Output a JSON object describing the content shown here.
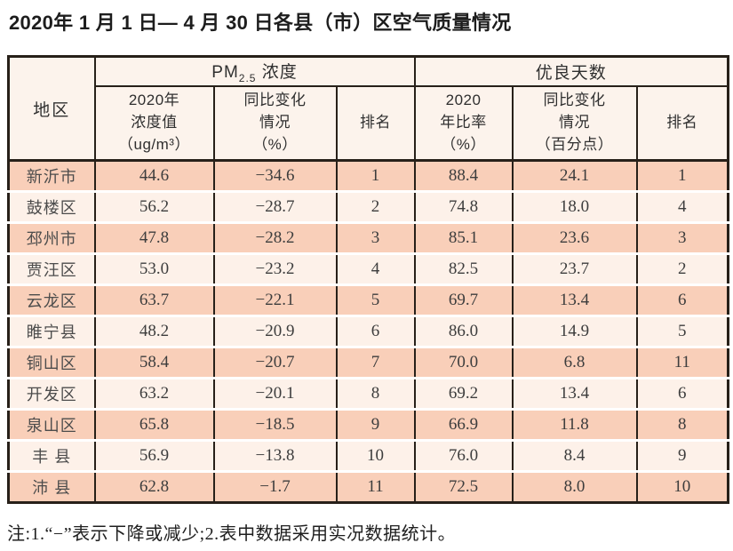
{
  "title": "2020年 1 月 1 日— 4 月 30 日各县（市）区空气质量情况",
  "table": {
    "header": {
      "region": "地区",
      "pm_group": {
        "prefix": "PM",
        "sub": "2.5",
        "suffix": " 浓度"
      },
      "good_group": "优良天数",
      "sub_headers": {
        "conc": "2020年\n浓度值\n（ug/m³）",
        "pm_change": "同比变化\n情况\n（%）",
        "pm_rank": "排名",
        "ratio": "2020\n年比率\n（%）",
        "good_change": "同比变化\n情况\n（百分点）",
        "good_rank": "排名"
      }
    },
    "rows": [
      {
        "region": "新沂市",
        "pm_value": "44.6",
        "pm_change": "−34.6",
        "pm_rank": "1",
        "good_ratio": "88.4",
        "good_change": "24.1",
        "good_rank": "1"
      },
      {
        "region": "鼓楼区",
        "pm_value": "56.2",
        "pm_change": "−28.7",
        "pm_rank": "2",
        "good_ratio": "74.8",
        "good_change": "18.0",
        "good_rank": "4"
      },
      {
        "region": "邳州市",
        "pm_value": "47.8",
        "pm_change": "−28.2",
        "pm_rank": "3",
        "good_ratio": "85.1",
        "good_change": "23.6",
        "good_rank": "3"
      },
      {
        "region": "贾汪区",
        "pm_value": "53.0",
        "pm_change": "−23.2",
        "pm_rank": "4",
        "good_ratio": "82.5",
        "good_change": "23.7",
        "good_rank": "2"
      },
      {
        "region": "云龙区",
        "pm_value": "63.7",
        "pm_change": "−22.1",
        "pm_rank": "5",
        "good_ratio": "69.7",
        "good_change": "13.4",
        "good_rank": "6"
      },
      {
        "region": "睢宁县",
        "pm_value": "48.2",
        "pm_change": "−20.9",
        "pm_rank": "6",
        "good_ratio": "86.0",
        "good_change": "14.9",
        "good_rank": "5"
      },
      {
        "region": "铜山区",
        "pm_value": "58.4",
        "pm_change": "−20.7",
        "pm_rank": "7",
        "good_ratio": "70.0",
        "good_change": "6.8",
        "good_rank": "11"
      },
      {
        "region": "开发区",
        "pm_value": "63.2",
        "pm_change": "−20.1",
        "pm_rank": "8",
        "good_ratio": "69.2",
        "good_change": "13.4",
        "good_rank": "6"
      },
      {
        "region": "泉山区",
        "pm_value": "65.8",
        "pm_change": "−18.5",
        "pm_rank": "9",
        "good_ratio": "66.9",
        "good_change": "11.8",
        "good_rank": "8"
      },
      {
        "region": "丰 县",
        "pm_value": "56.9",
        "pm_change": "−13.8",
        "pm_rank": "10",
        "good_ratio": "76.0",
        "good_change": "8.4",
        "good_rank": "9"
      },
      {
        "region": "沛 县",
        "pm_value": "62.8",
        "pm_change": "−1.7",
        "pm_rank": "11",
        "good_ratio": "72.5",
        "good_change": "8.0",
        "good_rank": "10"
      }
    ]
  },
  "note": "注:1.“−”表示下降或减少;2.表中数据采用实况数据统计。",
  "colors": {
    "row_dark": "#f9cfb9",
    "row_light": "#fdf1e9",
    "header_bg": "#fcf3ec",
    "border": "#272019"
  }
}
